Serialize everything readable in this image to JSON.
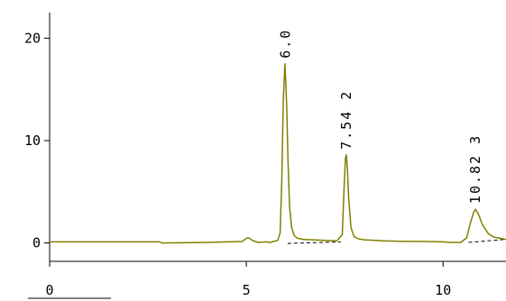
{
  "chart_data": {
    "type": "line",
    "title": "",
    "xlabel": "",
    "ylabel": "",
    "xlim": [
      0,
      11.6
    ],
    "ylim": [
      -1.8,
      22.5
    ],
    "x_ticks": [
      {
        "value": 0,
        "label": "0"
      },
      {
        "value": 5,
        "label": "5"
      },
      {
        "value": 10,
        "label": "10"
      }
    ],
    "y_ticks": [
      {
        "value": 0,
        "label": "0"
      },
      {
        "value": 10,
        "label": "10"
      },
      {
        "value": 20,
        "label": "20"
      }
    ],
    "grid": false,
    "colors": {
      "trace": "#808000",
      "baseline": "#000000",
      "axis": "#000000"
    },
    "peaks": [
      {
        "retention_time": 6.0,
        "label": "6.0",
        "height": 17.5
      },
      {
        "retention_time": 7.542,
        "label": "7.54 2",
        "height": 8.6
      },
      {
        "retention_time": 10.823,
        "label": "10.82 3",
        "height": 3.3
      }
    ],
    "series": [
      {
        "x": [
          0,
          1.5,
          2.8,
          2.85,
          4.0,
          4.5,
          4.9,
          5.0,
          5.06,
          5.15,
          5.3,
          5.5,
          5.6,
          5.7,
          5.8,
          5.86,
          5.9,
          5.94,
          5.98,
          6.0,
          6.03,
          6.06,
          6.1,
          6.15,
          6.22,
          6.3,
          6.45,
          6.7,
          7.0,
          7.3,
          7.44,
          7.48,
          7.52,
          7.542,
          7.57,
          7.6,
          7.66,
          7.74,
          7.85,
          8.0,
          8.5,
          9.0,
          9.5,
          10.0,
          10.2,
          10.45,
          10.6,
          10.7,
          10.78,
          10.823,
          10.9,
          11.0,
          11.15,
          11.3,
          11.45,
          11.6
        ],
        "y": [
          0.1,
          0.1,
          0.1,
          0.0,
          0.05,
          0.1,
          0.15,
          0.45,
          0.5,
          0.25,
          0.05,
          0.1,
          0.05,
          0.15,
          0.25,
          1.0,
          6.0,
          14.0,
          17.5,
          16.0,
          13.0,
          8.0,
          3.5,
          1.5,
          0.7,
          0.45,
          0.35,
          0.3,
          0.25,
          0.2,
          0.8,
          5.0,
          8.3,
          8.6,
          7.2,
          4.5,
          1.5,
          0.6,
          0.4,
          0.3,
          0.2,
          0.15,
          0.15,
          0.1,
          0.05,
          0.05,
          0.5,
          2.0,
          3.0,
          3.3,
          2.8,
          1.8,
          0.9,
          0.55,
          0.45,
          0.35
        ]
      }
    ],
    "baselines": [
      {
        "x": [
          6.05,
          7.4
        ],
        "y": [
          -0.05,
          0.1
        ]
      },
      {
        "x": [
          10.65,
          11.6
        ],
        "y": [
          0.05,
          0.35
        ]
      }
    ]
  }
}
